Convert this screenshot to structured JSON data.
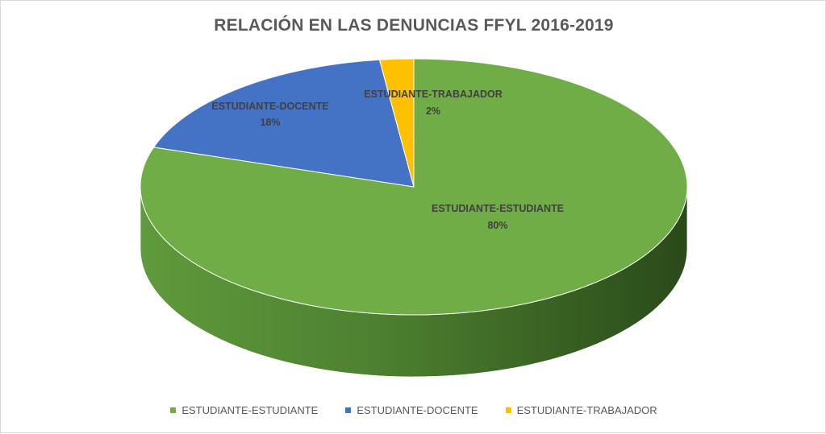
{
  "chart_data": {
    "type": "pie",
    "title": "RELACIÓN EN LAS DENUNCIAS FFYL 2016-2019",
    "slices": [
      {
        "name": "ESTUDIANTE-ESTUDIANTE",
        "value": 80,
        "label": "80%",
        "color": "#70ad47"
      },
      {
        "name": "ESTUDIANTE-DOCENTE",
        "value": 18,
        "label": "18%",
        "color": "#4472c4"
      },
      {
        "name": "ESTUDIANTE-TRABAJADOR",
        "value": 2,
        "label": "2%",
        "color": "#ffc000"
      }
    ],
    "legend_position": "bottom",
    "style": "3d-pie"
  }
}
